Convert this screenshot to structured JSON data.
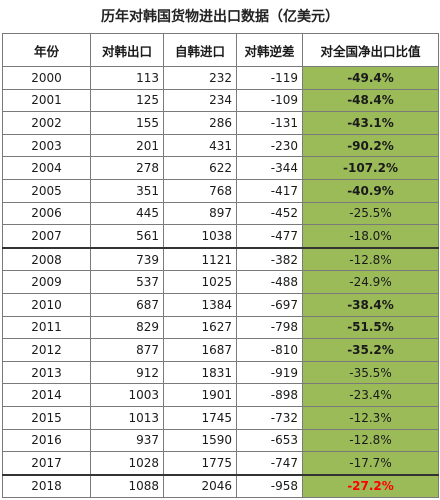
{
  "title": "历年对韩国货物进出口数据（亿美元）",
  "columns": [
    "年份",
    "对韩出口",
    "自韩进口",
    "对韩逆差",
    "对全国净出口比值"
  ],
  "rows": [
    {
      "year": "2000",
      "export": "113",
      "import": "232",
      "deficit": "-119",
      "share": "-49.4%",
      "bold": true,
      "red": false
    },
    {
      "year": "2001",
      "export": "125",
      "import": "234",
      "deficit": "-109",
      "share": "-48.4%",
      "bold": true,
      "red": false
    },
    {
      "year": "2002",
      "export": "155",
      "import": "286",
      "deficit": "-131",
      "share": "-43.1%",
      "bold": true,
      "red": false
    },
    {
      "year": "2003",
      "export": "201",
      "import": "431",
      "deficit": "-230",
      "share": "-90.2%",
      "bold": true,
      "red": false
    },
    {
      "year": "2004",
      "export": "278",
      "import": "622",
      "deficit": "-344",
      "share": "-107.2%",
      "bold": true,
      "red": false
    },
    {
      "year": "2005",
      "export": "351",
      "import": "768",
      "deficit": "-417",
      "share": "-40.9%",
      "bold": true,
      "red": false
    },
    {
      "year": "2006",
      "export": "445",
      "import": "897",
      "deficit": "-452",
      "share": "-25.5%",
      "bold": false,
      "red": false
    },
    {
      "year": "2007",
      "export": "561",
      "import": "1038",
      "deficit": "-477",
      "share": "-18.0%",
      "bold": false,
      "red": false
    },
    {
      "year": "2008",
      "export": "739",
      "import": "1121",
      "deficit": "-382",
      "share": "-12.8%",
      "bold": false,
      "red": false
    },
    {
      "year": "2009",
      "export": "537",
      "import": "1025",
      "deficit": "-488",
      "share": "-24.9%",
      "bold": false,
      "red": false
    },
    {
      "year": "2010",
      "export": "687",
      "import": "1384",
      "deficit": "-697",
      "share": "-38.4%",
      "bold": true,
      "red": false
    },
    {
      "year": "2011",
      "export": "829",
      "import": "1627",
      "deficit": "-798",
      "share": "-51.5%",
      "bold": true,
      "red": false
    },
    {
      "year": "2012",
      "export": "877",
      "import": "1687",
      "deficit": "-810",
      "share": "-35.2%",
      "bold": true,
      "red": false
    },
    {
      "year": "2013",
      "export": "912",
      "import": "1831",
      "deficit": "-919",
      "share": "-35.5%",
      "bold": false,
      "red": false
    },
    {
      "year": "2014",
      "export": "1003",
      "import": "1901",
      "deficit": "-898",
      "share": "-23.4%",
      "bold": false,
      "red": false
    },
    {
      "year": "2015",
      "export": "1013",
      "import": "1745",
      "deficit": "-732",
      "share": "-12.3%",
      "bold": false,
      "red": false
    },
    {
      "year": "2016",
      "export": "937",
      "import": "1590",
      "deficit": "-653",
      "share": "-12.8%",
      "bold": false,
      "red": false
    },
    {
      "year": "2017",
      "export": "1028",
      "import": "1775",
      "deficit": "-747",
      "share": "-17.7%",
      "bold": false,
      "red": false
    },
    {
      "year": "2018",
      "export": "1088",
      "import": "2046",
      "deficit": "-958",
      "share": "-27.2%",
      "bold": true,
      "red": true
    }
  ],
  "colors": {
    "share_fill": "#9bbb59",
    "highlight_text": "#ff0000"
  }
}
